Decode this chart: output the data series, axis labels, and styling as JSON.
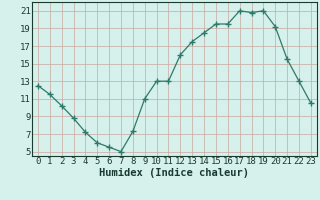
{
  "x": [
    0,
    1,
    2,
    3,
    4,
    5,
    6,
    7,
    8,
    9,
    10,
    11,
    12,
    13,
    14,
    15,
    16,
    17,
    18,
    19,
    20,
    21,
    22,
    23
  ],
  "y": [
    12.5,
    11.5,
    10.2,
    8.8,
    7.2,
    6.0,
    5.5,
    5.0,
    7.3,
    11.0,
    13.0,
    13.0,
    16.0,
    17.5,
    18.5,
    19.5,
    19.5,
    21.0,
    20.8,
    21.0,
    19.2,
    15.5,
    13.0,
    10.5
  ],
  "line_color": "#2d7a6a",
  "marker": "+",
  "marker_size": 4,
  "bg_color": "#d6f0ec",
  "grid_color_v": "#c8a8a0",
  "grid_color_h": "#c8a8a0",
  "xlabel": "Humidex (Indice chaleur)",
  "xlim": [
    -0.5,
    23.5
  ],
  "ylim": [
    4.5,
    22.0
  ],
  "yticks": [
    5,
    7,
    9,
    11,
    13,
    15,
    17,
    19,
    21
  ],
  "xticks": [
    0,
    1,
    2,
    3,
    4,
    5,
    6,
    7,
    8,
    9,
    10,
    11,
    12,
    13,
    14,
    15,
    16,
    17,
    18,
    19,
    20,
    21,
    22,
    23
  ],
  "font_color": "#1a3a30",
  "tick_label_fontsize": 6.5,
  "xlabel_fontsize": 7.5,
  "linewidth": 0.9,
  "marker_linewidth": 1.0
}
